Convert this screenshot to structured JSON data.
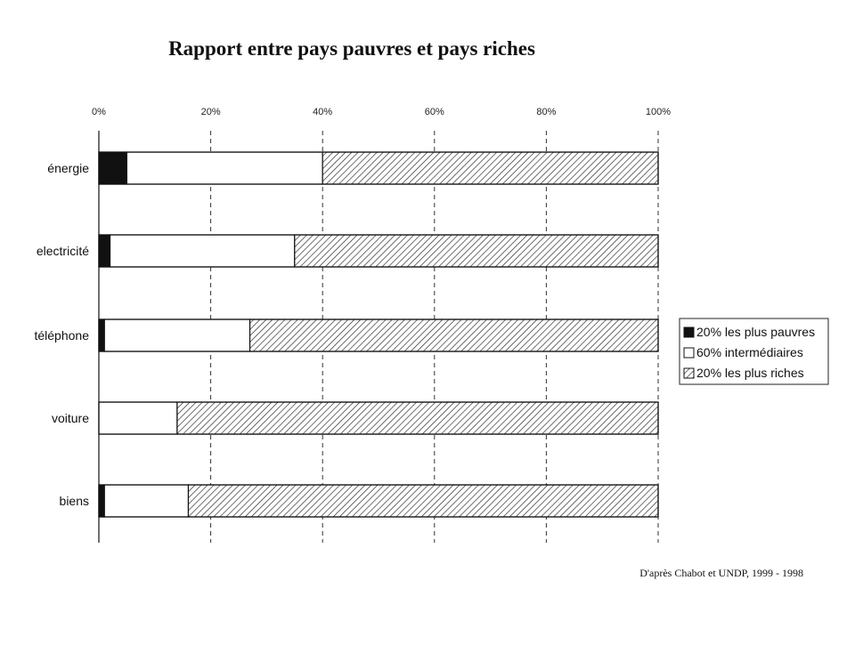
{
  "chart_data": {
    "type": "bar",
    "orientation": "horizontal",
    "stacked": true,
    "title": "Rapport entre pays pauvres et pays riches",
    "categories": [
      "énergie",
      "electricité",
      "téléphone",
      "voiture",
      "biens"
    ],
    "series": [
      {
        "name": "20% les plus pauvres",
        "values": [
          5,
          2,
          1,
          0,
          1
        ],
        "color": "#111111",
        "pattern": "solid"
      },
      {
        "name": "60% intermédiaires",
        "values": [
          35,
          33,
          26,
          14,
          15
        ],
        "color": "#ffffff",
        "pattern": "none"
      },
      {
        "name": "20% les plus riches",
        "values": [
          60,
          65,
          73,
          86,
          84
        ],
        "color": "#ffffff",
        "pattern": "hatch"
      }
    ],
    "x_ticks": [
      "0%",
      "20%",
      "40%",
      "60%",
      "80%",
      "100%"
    ],
    "xlim": [
      0,
      100
    ],
    "grid": true,
    "legend_position": "right",
    "source": "D'après Chabot et UNDP, 1999 - 1998"
  }
}
